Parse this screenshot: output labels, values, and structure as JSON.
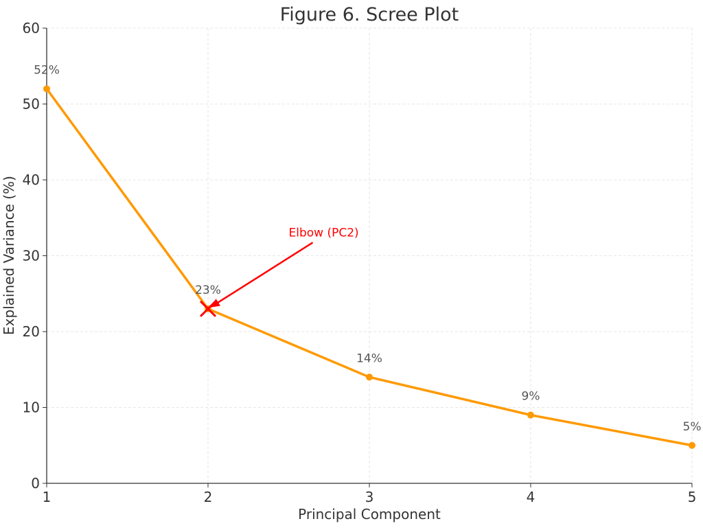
{
  "chart_data": {
    "type": "line",
    "title": "Figure 6. Scree Plot",
    "xlabel": "Principal Component",
    "ylabel": "Explained Variance (%)",
    "x": [
      1,
      2,
      3,
      4,
      5
    ],
    "values": [
      52,
      23,
      14,
      9,
      5
    ],
    "point_labels": [
      "52%",
      "23%",
      "14%",
      "9%",
      "5%"
    ],
    "xlim": [
      1,
      5
    ],
    "ylim": [
      0,
      60
    ],
    "xticks": [
      "1",
      "2",
      "3",
      "4",
      "5"
    ],
    "yticks": [
      "0",
      "10",
      "20",
      "30",
      "40",
      "50",
      "60"
    ],
    "grid": true,
    "line_color": "#ff9900",
    "annotation": {
      "text": "Elbow (PC2)",
      "xy": [
        2,
        23
      ],
      "xytext": [
        2.5,
        33
      ],
      "color": "#ff0000",
      "marker": "x"
    }
  }
}
